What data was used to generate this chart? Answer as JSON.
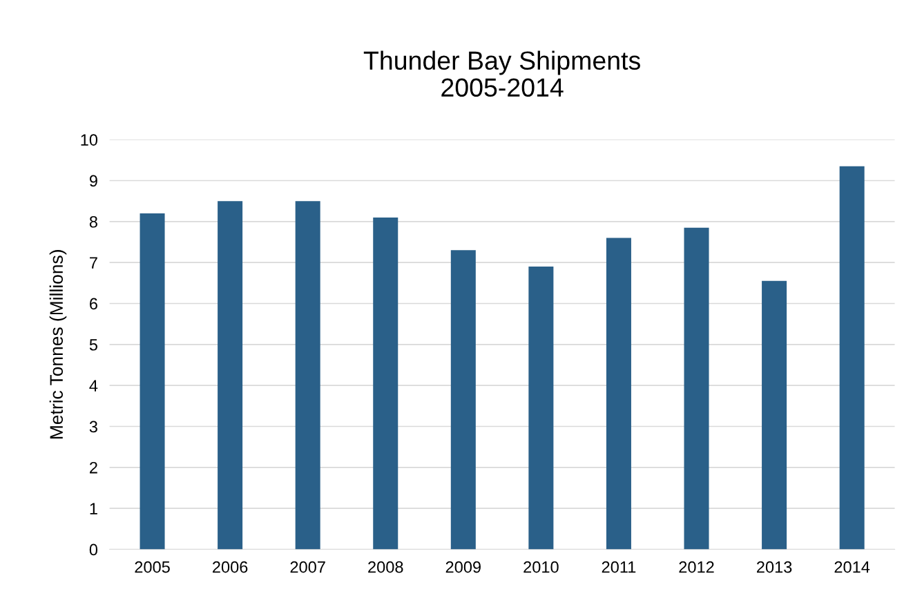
{
  "chart_data": {
    "type": "bar",
    "title": "Thunder Bay Shipments\n2005-2014",
    "ylabel": "Metric Tonnes (Millions)",
    "categories": [
      "2005",
      "2006",
      "2007",
      "2008",
      "2009",
      "2010",
      "2011",
      "2012",
      "2013",
      "2014"
    ],
    "values": [
      8.2,
      8.5,
      8.5,
      8.1,
      7.3,
      6.9,
      7.6,
      7.85,
      6.55,
      9.35
    ],
    "color": "#2a6089",
    "ylim": [
      0,
      10
    ],
    "yticks": [
      0,
      1,
      2,
      3,
      4,
      5,
      6,
      7,
      8,
      9,
      10
    ],
    "grid": "y"
  }
}
